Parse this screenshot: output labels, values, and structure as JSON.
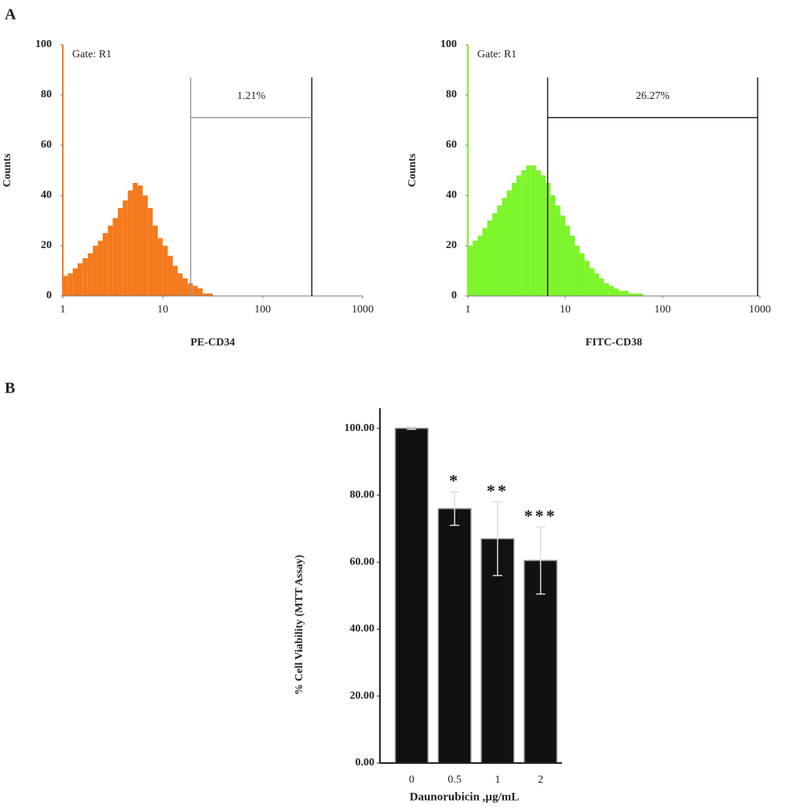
{
  "panel_labels": [
    "A",
    "B"
  ],
  "chart_data": [
    {
      "type": "histogram",
      "xlabel": "PE-CD34",
      "ylabel": "Counts",
      "log_x": true,
      "color": "#f57a1c",
      "xlim": [
        1,
        1000
      ],
      "xticks": [
        1,
        10,
        100,
        1000
      ],
      "ylim": [
        0,
        100
      ],
      "yticks": [
        0,
        20,
        40,
        60,
        80,
        100
      ],
      "annotation": "Gate: R1",
      "gate": {
        "range": [
          19,
          310
        ],
        "level": 71,
        "top": 87,
        "label": "1.21%"
      },
      "bins": [
        1,
        1.12,
        1.26,
        1.41,
        1.58,
        1.78,
        2,
        2.24,
        2.51,
        2.82,
        3.16,
        3.55,
        3.98,
        4.47,
        5.01,
        5.62,
        6.31,
        7.08,
        7.94,
        8.91,
        10,
        11.2,
        12.6,
        14.1,
        15.8,
        17.8,
        20,
        22.4,
        25.1,
        28.2,
        31.6
      ],
      "values": [
        8,
        9,
        11,
        13,
        15,
        17,
        20,
        22,
        25,
        28,
        31,
        35,
        38,
        42,
        45,
        44,
        40,
        35,
        28,
        23,
        20,
        16,
        12,
        9,
        7,
        5,
        4,
        3,
        1,
        1
      ]
    },
    {
      "type": "histogram",
      "xlabel": "FITC-CD38",
      "ylabel": "Counts",
      "log_x": true,
      "color": "#7cf52a",
      "xlim": [
        1,
        1000
      ],
      "xticks": [
        1,
        10,
        100,
        1000
      ],
      "ylim": [
        0,
        100
      ],
      "yticks": [
        0,
        20,
        40,
        60,
        80,
        100
      ],
      "annotation": "Gate: R1",
      "gate": {
        "range": [
          6.6,
          950
        ],
        "level": 71,
        "top": 87,
        "label": "26.27%"
      },
      "bins": [
        1,
        1.12,
        1.26,
        1.41,
        1.58,
        1.78,
        2,
        2.24,
        2.51,
        2.82,
        3.16,
        3.55,
        3.98,
        4.47,
        5.01,
        5.62,
        6.31,
        7.08,
        7.94,
        8.91,
        10,
        11.2,
        12.6,
        14.1,
        15.8,
        17.8,
        20,
        22.4,
        25.1,
        28.2,
        31.6,
        35.5,
        39.8,
        44.7,
        50.1,
        56.2,
        63.1
      ],
      "values": [
        20,
        22,
        24,
        27,
        30,
        33,
        36,
        39,
        42,
        45,
        48,
        50,
        52,
        52,
        50,
        48,
        45,
        40,
        36,
        32,
        28,
        24,
        20,
        17,
        14,
        11,
        9,
        7,
        5,
        4,
        3,
        2,
        2,
        1,
        1,
        1
      ]
    },
    {
      "type": "bar",
      "xlabel": "Daunorubicin ,µg/mL",
      "ylabel": "% Cell Viability (MTT Assay)",
      "color": "#111111",
      "categories": [
        "0",
        "0.5",
        "1",
        "2"
      ],
      "values": [
        100,
        76,
        67,
        60.5
      ],
      "errors": [
        0.3,
        5,
        11,
        10
      ],
      "annotations": [
        {
          "x": "0.5",
          "text": "*"
        },
        {
          "x": "1",
          "text": "**"
        },
        {
          "x": "2",
          "text": "***"
        }
      ],
      "ylim": [
        0,
        106
      ],
      "yticks": [
        {
          "value": 0,
          "label": "0.00"
        },
        {
          "value": 20,
          "label": "20.00"
        },
        {
          "value": 40,
          "label": "40.00"
        },
        {
          "value": 60,
          "label": "60.00"
        },
        {
          "value": 80,
          "label": "80.00"
        },
        {
          "value": 100,
          "label": "100.00"
        }
      ]
    }
  ]
}
